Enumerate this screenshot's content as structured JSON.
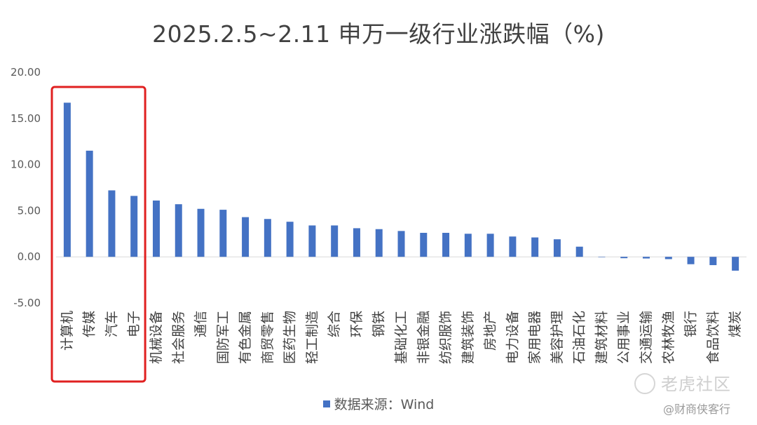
{
  "chart_data": {
    "type": "bar",
    "title": "2025.2.5~2.11 申万一级行业涨跌幅（%)",
    "categories": [
      "计算机",
      "传媒",
      "汽车",
      "电子",
      "机械设备",
      "社会服务",
      "通信",
      "国防军工",
      "有色金属",
      "商贸零售",
      "医药生物",
      "轻工制造",
      "综合",
      "环保",
      "钢铁",
      "基础化工",
      "非银金融",
      "纺织服饰",
      "建筑装饰",
      "房地产",
      "电力设备",
      "家用电器",
      "美容护理",
      "石油石化",
      "建筑材料",
      "公用事业",
      "交通运输",
      "农林牧渔",
      "银行",
      "食品饮料",
      "煤炭"
    ],
    "values": [
      16.7,
      11.5,
      7.2,
      6.6,
      6.1,
      5.7,
      5.2,
      5.1,
      4.3,
      4.1,
      3.8,
      3.4,
      3.4,
      3.1,
      3.0,
      2.8,
      2.6,
      2.6,
      2.5,
      2.5,
      2.2,
      2.1,
      1.9,
      1.1,
      0.0,
      -0.15,
      -0.18,
      -0.25,
      -0.8,
      -0.9,
      -1.5
    ],
    "ylim": [
      -5,
      20
    ],
    "yticks": [
      "20.00",
      "15.00",
      "10.00",
      "5.00",
      "0.00",
      "-5.00"
    ],
    "ytick_values": [
      20,
      15,
      10,
      5,
      0,
      -5
    ],
    "grid": false,
    "bar_color": "#4472C4",
    "highlight": {
      "categories": [
        "计算机",
        "传媒",
        "汽车",
        "电子"
      ],
      "color": "#E02020"
    },
    "legend": {
      "label": "数据来源：Wind",
      "position": "bottom"
    }
  },
  "watermark": {
    "main": "老虎社区",
    "sub": "@财商侠客行"
  }
}
